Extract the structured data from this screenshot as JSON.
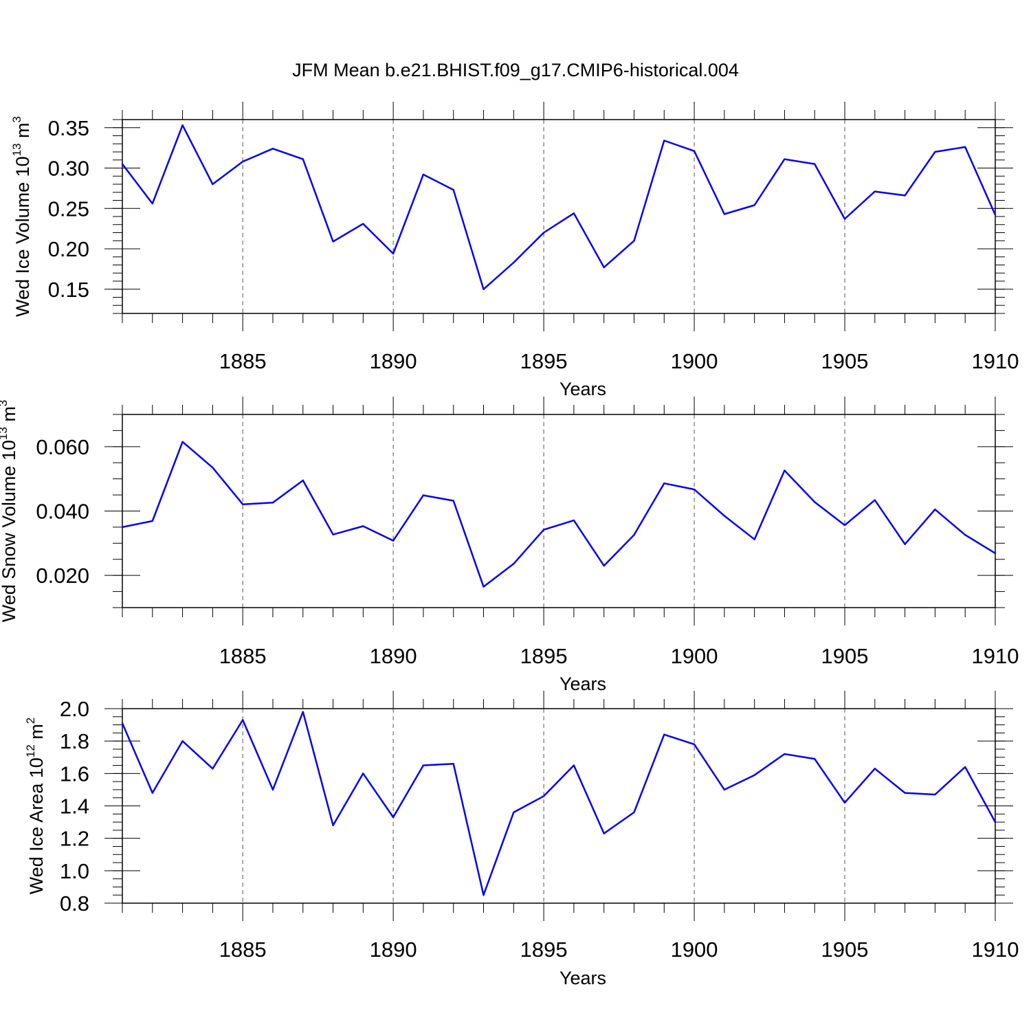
{
  "title": "JFM Mean b.e21.BHIST.f09_g17.CMIP6-historical.004",
  "colors": {
    "line": "#0000ff",
    "axis": "#000000",
    "grid": "#555555"
  },
  "chart_data": [
    {
      "type": "line",
      "name": "ice-volume",
      "ylabel": {
        "main": "Wed Ice Volume 10",
        "exp": "13",
        "unit": " m",
        "unit_exp": "3"
      },
      "xlabel": "Years",
      "xlim": [
        1881,
        1910
      ],
      "ylim": [
        0.12,
        0.36
      ],
      "major_ticks": [
        "0.15",
        "0.20",
        "0.25",
        "0.30",
        "0.35"
      ],
      "minor_step": 0.01,
      "x_major": [
        "1885",
        "1890",
        "1895",
        "1900",
        "1905",
        "1910"
      ],
      "x": [
        1881,
        1882,
        1883,
        1884,
        1885,
        1886,
        1887,
        1888,
        1889,
        1890,
        1891,
        1892,
        1893,
        1894,
        1895,
        1896,
        1897,
        1898,
        1899,
        1900,
        1901,
        1902,
        1903,
        1904,
        1905,
        1906,
        1907,
        1908,
        1909,
        1910
      ],
      "values": [
        0.305,
        0.256,
        0.353,
        0.28,
        0.308,
        0.324,
        0.311,
        0.209,
        0.231,
        0.194,
        0.292,
        0.273,
        0.15,
        0.183,
        0.22,
        0.244,
        0.177,
        0.21,
        0.334,
        0.321,
        0.243,
        0.254,
        0.311,
        0.305,
        0.237,
        0.271,
        0.266,
        0.32,
        0.326,
        0.242
      ]
    },
    {
      "type": "line",
      "name": "snow-volume",
      "ylabel": {
        "main": "Wed Snow Volume 10",
        "exp": "13",
        "unit": " m",
        "unit_exp": "3"
      },
      "xlabel": "Years",
      "xlim": [
        1881,
        1910
      ],
      "ylim": [
        0.01,
        0.07
      ],
      "major_ticks": [
        "0.020",
        "0.040",
        "0.060"
      ],
      "minor_step": 0.005,
      "x_major": [
        "1885",
        "1890",
        "1895",
        "1900",
        "1905",
        "1910"
      ],
      "x": [
        1881,
        1882,
        1883,
        1884,
        1885,
        1886,
        1887,
        1888,
        1889,
        1890,
        1891,
        1892,
        1893,
        1894,
        1895,
        1896,
        1897,
        1898,
        1899,
        1900,
        1901,
        1902,
        1903,
        1904,
        1905,
        1906,
        1907,
        1908,
        1909,
        1910
      ],
      "values": [
        0.035,
        0.0369,
        0.0615,
        0.0535,
        0.0421,
        0.0426,
        0.0495,
        0.0327,
        0.0353,
        0.0308,
        0.0449,
        0.0432,
        0.0165,
        0.0236,
        0.0342,
        0.0371,
        0.023,
        0.0326,
        0.0486,
        0.0467,
        0.0385,
        0.0312,
        0.0526,
        0.0428,
        0.0356,
        0.0434,
        0.0297,
        0.0405,
        0.0326,
        0.0269
      ]
    },
    {
      "type": "line",
      "name": "ice-area",
      "ylabel": {
        "main": "Wed Ice Area 10",
        "exp": "12",
        "unit": " m",
        "unit_exp": "2"
      },
      "xlabel": "Years",
      "xlim": [
        1881,
        1910
      ],
      "ylim": [
        0.8,
        2.0
      ],
      "major_ticks": [
        "0.8",
        "1.0",
        "1.2",
        "1.4",
        "1.6",
        "1.8",
        "2.0"
      ],
      "minor_step": 0.05,
      "x_major": [
        "1885",
        "1890",
        "1895",
        "1900",
        "1905",
        "1910"
      ],
      "x": [
        1881,
        1882,
        1883,
        1884,
        1885,
        1886,
        1887,
        1888,
        1889,
        1890,
        1891,
        1892,
        1893,
        1894,
        1895,
        1896,
        1897,
        1898,
        1899,
        1900,
        1901,
        1902,
        1903,
        1904,
        1905,
        1906,
        1907,
        1908,
        1909,
        1910
      ],
      "values": [
        1.91,
        1.48,
        1.8,
        1.63,
        1.93,
        1.5,
        1.98,
        1.28,
        1.6,
        1.33,
        1.65,
        1.66,
        0.85,
        1.36,
        1.46,
        1.65,
        1.23,
        1.36,
        1.84,
        1.78,
        1.5,
        1.59,
        1.72,
        1.69,
        1.42,
        1.63,
        1.48,
        1.47,
        1.64,
        1.3
      ]
    }
  ]
}
